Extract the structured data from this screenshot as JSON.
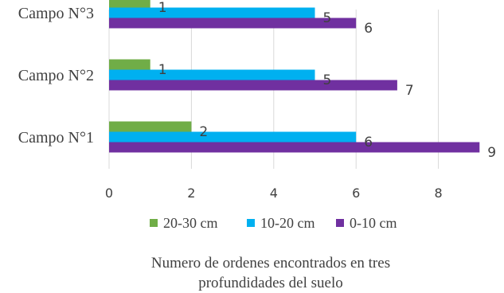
{
  "chart_data": {
    "type": "bar",
    "orientation": "horizontal",
    "categories": [
      "Campo N°1",
      "Campo N°2",
      "Campo N°3"
    ],
    "series": [
      {
        "name": "0-10 cm",
        "values": [
          9,
          7,
          6
        ],
        "color": "#7030A0"
      },
      {
        "name": "10-20 cm",
        "values": [
          6,
          5,
          5
        ],
        "color": "#00B0F0"
      },
      {
        "name": "20-30 cm",
        "values": [
          2,
          1,
          1
        ],
        "color": "#70AD47"
      }
    ],
    "legend_order": [
      "20-30 cm",
      "10-20 cm",
      "0-10 cm"
    ],
    "xlim": [
      0,
      9
    ],
    "xticks": [
      0,
      2,
      4,
      6,
      8
    ],
    "grid": true,
    "gridline_color": "#D9D9D9",
    "legend_position": "bottom",
    "title_lines": [
      "Numero de ordenes encontrados en tres",
      "profundidades del suelo"
    ],
    "xlabel": "",
    "ylabel": ""
  }
}
